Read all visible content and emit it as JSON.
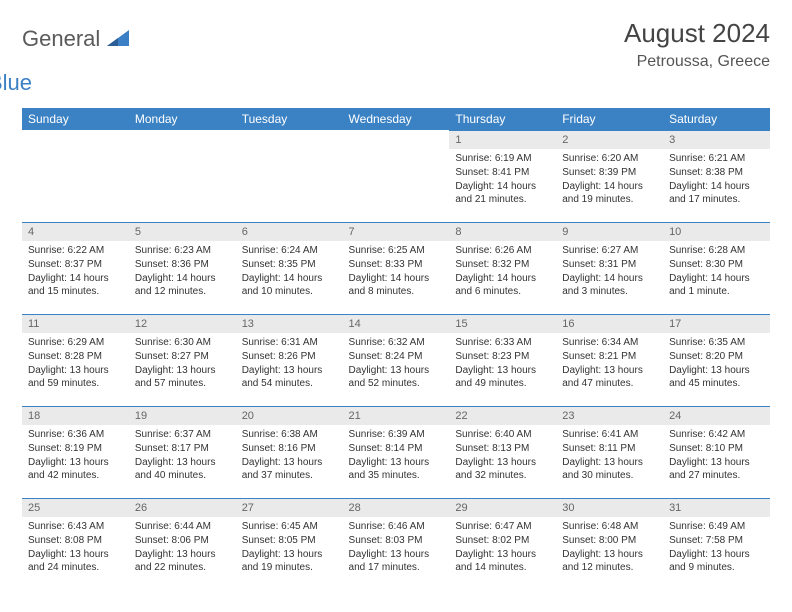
{
  "brand": {
    "general": "General",
    "blue": "Blue"
  },
  "title": "August 2024",
  "location": "Petroussa, Greece",
  "colors": {
    "header_bg": "#3b82c4",
    "header_text": "#ffffff",
    "daynum_bg": "#eaeaea",
    "border": "#3b82c4",
    "text": "#333333",
    "logo_gray": "#5a5a5a",
    "logo_blue": "#3b7fc4"
  },
  "weekdays": [
    "Sunday",
    "Monday",
    "Tuesday",
    "Wednesday",
    "Thursday",
    "Friday",
    "Saturday"
  ],
  "weeks": [
    [
      null,
      null,
      null,
      null,
      {
        "n": "1",
        "sr": "6:19 AM",
        "ss": "8:41 PM",
        "dl": "14 hours and 21 minutes."
      },
      {
        "n": "2",
        "sr": "6:20 AM",
        "ss": "8:39 PM",
        "dl": "14 hours and 19 minutes."
      },
      {
        "n": "3",
        "sr": "6:21 AM",
        "ss": "8:38 PM",
        "dl": "14 hours and 17 minutes."
      }
    ],
    [
      {
        "n": "4",
        "sr": "6:22 AM",
        "ss": "8:37 PM",
        "dl": "14 hours and 15 minutes."
      },
      {
        "n": "5",
        "sr": "6:23 AM",
        "ss": "8:36 PM",
        "dl": "14 hours and 12 minutes."
      },
      {
        "n": "6",
        "sr": "6:24 AM",
        "ss": "8:35 PM",
        "dl": "14 hours and 10 minutes."
      },
      {
        "n": "7",
        "sr": "6:25 AM",
        "ss": "8:33 PM",
        "dl": "14 hours and 8 minutes."
      },
      {
        "n": "8",
        "sr": "6:26 AM",
        "ss": "8:32 PM",
        "dl": "14 hours and 6 minutes."
      },
      {
        "n": "9",
        "sr": "6:27 AM",
        "ss": "8:31 PM",
        "dl": "14 hours and 3 minutes."
      },
      {
        "n": "10",
        "sr": "6:28 AM",
        "ss": "8:30 PM",
        "dl": "14 hours and 1 minute."
      }
    ],
    [
      {
        "n": "11",
        "sr": "6:29 AM",
        "ss": "8:28 PM",
        "dl": "13 hours and 59 minutes."
      },
      {
        "n": "12",
        "sr": "6:30 AM",
        "ss": "8:27 PM",
        "dl": "13 hours and 57 minutes."
      },
      {
        "n": "13",
        "sr": "6:31 AM",
        "ss": "8:26 PM",
        "dl": "13 hours and 54 minutes."
      },
      {
        "n": "14",
        "sr": "6:32 AM",
        "ss": "8:24 PM",
        "dl": "13 hours and 52 minutes."
      },
      {
        "n": "15",
        "sr": "6:33 AM",
        "ss": "8:23 PM",
        "dl": "13 hours and 49 minutes."
      },
      {
        "n": "16",
        "sr": "6:34 AM",
        "ss": "8:21 PM",
        "dl": "13 hours and 47 minutes."
      },
      {
        "n": "17",
        "sr": "6:35 AM",
        "ss": "8:20 PM",
        "dl": "13 hours and 45 minutes."
      }
    ],
    [
      {
        "n": "18",
        "sr": "6:36 AM",
        "ss": "8:19 PM",
        "dl": "13 hours and 42 minutes."
      },
      {
        "n": "19",
        "sr": "6:37 AM",
        "ss": "8:17 PM",
        "dl": "13 hours and 40 minutes."
      },
      {
        "n": "20",
        "sr": "6:38 AM",
        "ss": "8:16 PM",
        "dl": "13 hours and 37 minutes."
      },
      {
        "n": "21",
        "sr": "6:39 AM",
        "ss": "8:14 PM",
        "dl": "13 hours and 35 minutes."
      },
      {
        "n": "22",
        "sr": "6:40 AM",
        "ss": "8:13 PM",
        "dl": "13 hours and 32 minutes."
      },
      {
        "n": "23",
        "sr": "6:41 AM",
        "ss": "8:11 PM",
        "dl": "13 hours and 30 minutes."
      },
      {
        "n": "24",
        "sr": "6:42 AM",
        "ss": "8:10 PM",
        "dl": "13 hours and 27 minutes."
      }
    ],
    [
      {
        "n": "25",
        "sr": "6:43 AM",
        "ss": "8:08 PM",
        "dl": "13 hours and 24 minutes."
      },
      {
        "n": "26",
        "sr": "6:44 AM",
        "ss": "8:06 PM",
        "dl": "13 hours and 22 minutes."
      },
      {
        "n": "27",
        "sr": "6:45 AM",
        "ss": "8:05 PM",
        "dl": "13 hours and 19 minutes."
      },
      {
        "n": "28",
        "sr": "6:46 AM",
        "ss": "8:03 PM",
        "dl": "13 hours and 17 minutes."
      },
      {
        "n": "29",
        "sr": "6:47 AM",
        "ss": "8:02 PM",
        "dl": "13 hours and 14 minutes."
      },
      {
        "n": "30",
        "sr": "6:48 AM",
        "ss": "8:00 PM",
        "dl": "13 hours and 12 minutes."
      },
      {
        "n": "31",
        "sr": "6:49 AM",
        "ss": "7:58 PM",
        "dl": "13 hours and 9 minutes."
      }
    ]
  ],
  "labels": {
    "sunrise": "Sunrise:",
    "sunset": "Sunset:",
    "daylight": "Daylight:"
  }
}
